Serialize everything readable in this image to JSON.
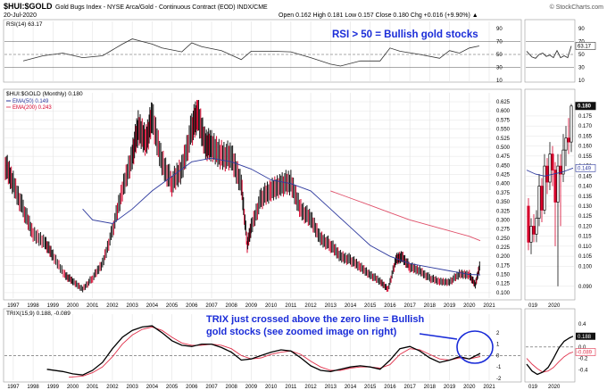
{
  "header": {
    "symbol": "$HUI:$GOLD",
    "description": "Gold Bugs Index - NYSE Arca/Gold - Continuous Contract (EOD)  INDX/CME",
    "date": "20-Jul-2020",
    "ohlc": "Open 0.162  High 0.181  Low 0.157  Close 0.180  Chg +0.016 (+9.90%) ▲",
    "watermark": "© StockCharts.com"
  },
  "colors": {
    "price_up": "#111111",
    "price_down": "#d6002a",
    "ema50": "#2e3a9e",
    "ema200": "#e0506a",
    "trix": "#000000",
    "signal": "#e0304a",
    "annotation": "#1a2cd8",
    "grid": "#e3e3e3"
  },
  "annotations": {
    "rsi": "RSI > 50 = Bullish gold stocks",
    "trix_line1": "TRIX just crossed above the zero line = Bullish",
    "trix_line2": "gold stocks (see zoomed image on right)"
  },
  "chart_data": [
    {
      "id": "rsi",
      "type": "line",
      "legend": "RSI(14) 63.17",
      "ylim": [
        10,
        90
      ],
      "yticks": [
        10,
        30,
        50,
        70,
        90
      ],
      "reference_lines": [
        30,
        50,
        70
      ],
      "series": [
        {
          "name": "RSI(14)",
          "x": [
            1997.5,
            1998.5,
            1999.5,
            2000.5,
            2001.5,
            2002.5,
            2003,
            2003.5,
            2004,
            2004.5,
            2005.5,
            2006,
            2006.5,
            2007.5,
            2008.5,
            2009,
            2010,
            2011,
            2012,
            2013,
            2013.5,
            2014.5,
            2015.5,
            2016,
            2016.5,
            2017.5,
            2018.5,
            2019,
            2019.5,
            2020,
            2020.5
          ],
          "y": [
            40,
            48,
            52,
            45,
            48,
            66,
            74,
            70,
            66,
            60,
            54,
            68,
            62,
            56,
            42,
            55,
            55,
            54,
            45,
            35,
            32,
            40,
            40,
            60,
            55,
            50,
            44,
            56,
            52,
            60,
            63.17
          ]
        }
      ]
    },
    {
      "id": "price",
      "type": "line",
      "legend": "$HUI:$GOLD (Monthly) 0.180",
      "ema50_label": "EMA(50) 0.149",
      "ema200_label": "EMA(200) 0.243",
      "ylim": [
        0.09,
        0.63
      ],
      "yticks": [
        0.1,
        0.125,
        0.15,
        0.175,
        0.2,
        0.225,
        0.25,
        0.275,
        0.3,
        0.325,
        0.35,
        0.375,
        0.4,
        0.425,
        0.45,
        0.475,
        0.5,
        0.525,
        0.55,
        0.575,
        0.6,
        0.625
      ],
      "xticks": [
        "1997",
        "1998",
        "1999",
        "2000",
        "2001",
        "2002",
        "2003",
        "2004",
        "2005",
        "2006",
        "2007",
        "2008",
        "2009",
        "2010",
        "2011",
        "2012",
        "2013",
        "2014",
        "2015",
        "2016",
        "2017",
        "2018",
        "2019",
        "2020",
        "2021"
      ],
      "last_value_label": "0.180",
      "ema50_value_label": "0.149",
      "series": [
        {
          "name": "$HUI:$GOLD",
          "x": [
            1996.6,
            1997,
            1997.5,
            1998,
            1998.6,
            1999,
            1999.6,
            2000,
            2000.5,
            2001,
            2001.5,
            2002,
            2002.5,
            2003,
            2003.3,
            2003.7,
            2004,
            2004.5,
            2005,
            2005.5,
            2006,
            2006.3,
            2006.7,
            2007,
            2007.5,
            2008,
            2008.5,
            2008.8,
            2009,
            2009.5,
            2010,
            2010.5,
            2011,
            2011.5,
            2012,
            2012.5,
            2013,
            2013.5,
            2014,
            2014.5,
            2015,
            2015.5,
            2015.9,
            2016.3,
            2016.6,
            2017,
            2017.5,
            2018,
            2018.5,
            2019,
            2019.5,
            2020,
            2020.3,
            2020.55
          ],
          "y": [
            0.45,
            0.4,
            0.33,
            0.26,
            0.24,
            0.2,
            0.15,
            0.13,
            0.11,
            0.14,
            0.18,
            0.27,
            0.38,
            0.48,
            0.55,
            0.52,
            0.58,
            0.46,
            0.4,
            0.44,
            0.55,
            0.59,
            0.51,
            0.5,
            0.48,
            0.47,
            0.4,
            0.23,
            0.28,
            0.36,
            0.38,
            0.4,
            0.4,
            0.33,
            0.3,
            0.25,
            0.23,
            0.2,
            0.19,
            0.17,
            0.15,
            0.13,
            0.11,
            0.19,
            0.2,
            0.17,
            0.16,
            0.14,
            0.13,
            0.13,
            0.15,
            0.15,
            0.12,
            0.18
          ]
        },
        {
          "name": "EMA(50)",
          "x": [
            2000.5,
            2001,
            2002,
            2003,
            2004,
            2005,
            2006,
            2007,
            2008,
            2009,
            2010,
            2011,
            2012,
            2013,
            2014,
            2015,
            2016,
            2017,
            2018,
            2019,
            2020,
            2020.55
          ],
          "y": [
            0.33,
            0.3,
            0.29,
            0.33,
            0.38,
            0.42,
            0.46,
            0.47,
            0.46,
            0.44,
            0.41,
            0.4,
            0.38,
            0.33,
            0.28,
            0.23,
            0.2,
            0.18,
            0.17,
            0.16,
            0.15,
            0.149
          ]
        },
        {
          "name": "EMA(200)",
          "x": [
            2013,
            2014,
            2015,
            2016,
            2017,
            2018,
            2019,
            2020,
            2020.55
          ],
          "y": [
            0.38,
            0.36,
            0.34,
            0.32,
            0.3,
            0.285,
            0.27,
            0.255,
            0.243
          ]
        }
      ]
    },
    {
      "id": "trix",
      "type": "line",
      "legend": "TRIX(15,9) 0.188, -0.089",
      "ylim": [
        -2,
        3
      ],
      "yticks": [
        -2,
        -1,
        0,
        1,
        2
      ],
      "series": [
        {
          "name": "TRIX",
          "x": [
            1998.7,
            1999.5,
            2000,
            2000.5,
            2001,
            2001.5,
            2002,
            2002.5,
            2003,
            2003.5,
            2004,
            2004.5,
            2005,
            2005.5,
            2006,
            2006.5,
            2007,
            2007.5,
            2008,
            2008.5,
            2009,
            2009.5,
            2010,
            2010.5,
            2011,
            2011.5,
            2012,
            2012.5,
            2013,
            2013.5,
            2014,
            2014.5,
            2015,
            2015.5,
            2016,
            2016.5,
            2017,
            2017.5,
            2018,
            2018.5,
            2019,
            2019.5,
            2020,
            2020.55
          ],
          "y": [
            -1.2,
            -1.4,
            -1.6,
            -1.7,
            -1.3,
            -0.6,
            0.6,
            1.6,
            2.2,
            2.5,
            2.6,
            2.0,
            1.3,
            0.9,
            0.8,
            1.0,
            1.0,
            0.7,
            0.3,
            -0.4,
            -0.3,
            0.0,
            0.3,
            0.5,
            0.4,
            -0.2,
            -0.9,
            -1.3,
            -1.4,
            -1.2,
            -1.0,
            -0.9,
            -1.0,
            -1.2,
            -0.4,
            0.6,
            0.8,
            0.4,
            -0.2,
            -0.6,
            -0.4,
            -0.1,
            -0.3,
            0.188
          ]
        },
        {
          "name": "Signal",
          "x": [
            1999.8,
            2000.5,
            2001,
            2001.5,
            2002,
            2002.5,
            2003,
            2003.5,
            2004,
            2004.5,
            2005,
            2005.5,
            2006,
            2006.5,
            2007,
            2007.5,
            2008,
            2008.5,
            2009,
            2009.5,
            2010,
            2010.5,
            2011,
            2011.5,
            2012,
            2012.5,
            2013,
            2013.5,
            2014,
            2014.5,
            2015,
            2015.5,
            2016,
            2016.5,
            2017,
            2017.5,
            2018,
            2018.5,
            2019,
            2019.5,
            2020,
            2020.55
          ],
          "y": [
            -1.9,
            -1.8,
            -1.5,
            -1.0,
            -0.1,
            1.0,
            1.8,
            2.3,
            2.5,
            2.2,
            1.6,
            1.1,
            0.9,
            0.9,
            1.0,
            0.9,
            0.6,
            0.0,
            -0.3,
            -0.2,
            0.1,
            0.3,
            0.4,
            0.1,
            -0.5,
            -1.0,
            -1.3,
            -1.3,
            -1.1,
            -1.0,
            -1.0,
            -1.1,
            -0.8,
            0.1,
            0.6,
            0.5,
            0.1,
            -0.3,
            -0.4,
            -0.2,
            -0.3,
            -0.089
          ]
        }
      ]
    },
    {
      "id": "zoom",
      "type": "line",
      "xticks": [
        "019",
        "2020"
      ],
      "rsi_yticks": [
        10,
        30,
        50,
        70,
        90
      ],
      "rsi_value_label": "63.17",
      "price_yticks": [
        0.09,
        0.1,
        0.105,
        0.11,
        0.115,
        0.12,
        0.125,
        0.13,
        0.135,
        0.14,
        0.145,
        0.15,
        0.155,
        0.16,
        0.165,
        0.17,
        0.175
      ],
      "price_value_label": "0.180",
      "ema_value_label": "0.149",
      "trix_yticks": [
        -0.4,
        -0.2,
        0.0,
        0.2,
        0.4
      ],
      "trix_value_label": "0.188",
      "signal_value_label": "-0.089"
    }
  ]
}
